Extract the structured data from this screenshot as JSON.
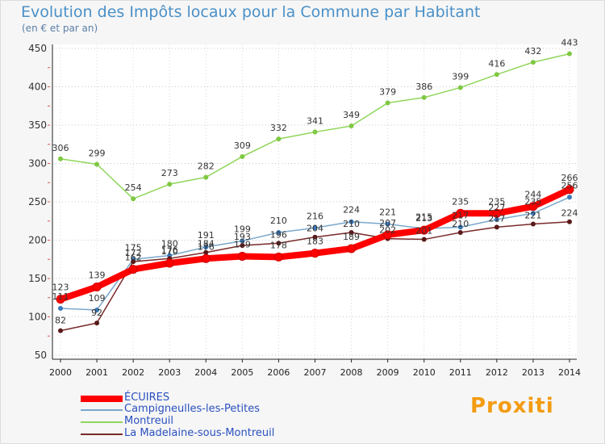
{
  "title": "Evolution des Impôts locaux pour la Commune par Habitant",
  "subtitle": "(en € et par an)",
  "logo_text": "Proxiti",
  "legend": [
    {
      "label": "ÉCUIRES",
      "color": "#ff0000"
    },
    {
      "label": "Campigneulles-les-Petites",
      "color": "#7aa8cc"
    },
    {
      "label": "Montreuil",
      "color": "#8fd65a"
    },
    {
      "label": "La Madelaine-sous-Montreuil",
      "color": "#7a2a2a"
    }
  ],
  "chart_data": {
    "type": "line",
    "title": "Evolution des Impôts locaux pour la Commune par Habitant",
    "ylabel": "(en € et par an)",
    "xlabel": "",
    "categories": [
      "2000",
      "2001",
      "2002",
      "2003",
      "2004",
      "2005",
      "2006",
      "2007",
      "2008",
      "2009",
      "2010",
      "2011",
      "2012",
      "2013",
      "2014"
    ],
    "ylim": [
      50,
      450
    ],
    "yticks": [
      50,
      100,
      150,
      200,
      250,
      300,
      350,
      400,
      450
    ],
    "grid": "horizontal-dotted",
    "series": [
      {
        "name": "Montreuil",
        "color": "#8fd65a",
        "marker": "#7ec842",
        "values": [
          306,
          299,
          254,
          273,
          282,
          309,
          332,
          341,
          349,
          379,
          386,
          399,
          416,
          432,
          443
        ]
      },
      {
        "name": "Campigneulles-les-Petites",
        "color": "#7aa8cc",
        "marker": "#3a78b8",
        "values": [
          111,
          109,
          175,
          180,
          191,
          199,
          210,
          216,
          224,
          221,
          215,
          217,
          227,
          235,
          256
        ]
      },
      {
        "name": "La Madelaine-sous-Montreuil",
        "color": "#7a2a2a",
        "marker": "#5a1a1a",
        "values": [
          82,
          92,
          172,
          176,
          184,
          193,
          196,
          204,
          210,
          202,
          201,
          210,
          217,
          221,
          224
        ]
      },
      {
        "name": "ÉCUIRES",
        "color": "#ff0000",
        "marker": "#ff0000",
        "values": [
          123,
          139,
          162,
          170,
          176,
          179,
          178,
          183,
          189,
          207,
          213,
          235,
          235,
          244,
          266
        ]
      }
    ],
    "data_labels": [
      {
        "series": "Montreuil",
        "values": [
          "306",
          "299",
          "254",
          "273",
          "282",
          "309",
          "332",
          "341",
          "349",
          "379",
          "386",
          "399",
          "416",
          "432",
          "443"
        ]
      },
      {
        "series": "ÉCUIRES",
        "values": [
          "123",
          "139",
          "162",
          "170",
          "176",
          "179",
          "178",
          "183",
          "189",
          "207",
          "213",
          "235",
          "235",
          "244",
          "266"
        ]
      },
      {
        "series": "Campigneulles-les-Petites",
        "values": [
          "111",
          "109",
          "175",
          "180",
          "191",
          "199",
          "210",
          "216",
          "224",
          "221",
          "215",
          "217",
          "227",
          "235",
          "256"
        ]
      },
      {
        "series": "La Madelaine-sous-Montreuil",
        "values": [
          "82",
          "92",
          "172",
          "176",
          "184",
          "193",
          "196",
          "204",
          "210",
          "202",
          "201",
          "210",
          "217",
          "221",
          "224"
        ]
      }
    ]
  }
}
